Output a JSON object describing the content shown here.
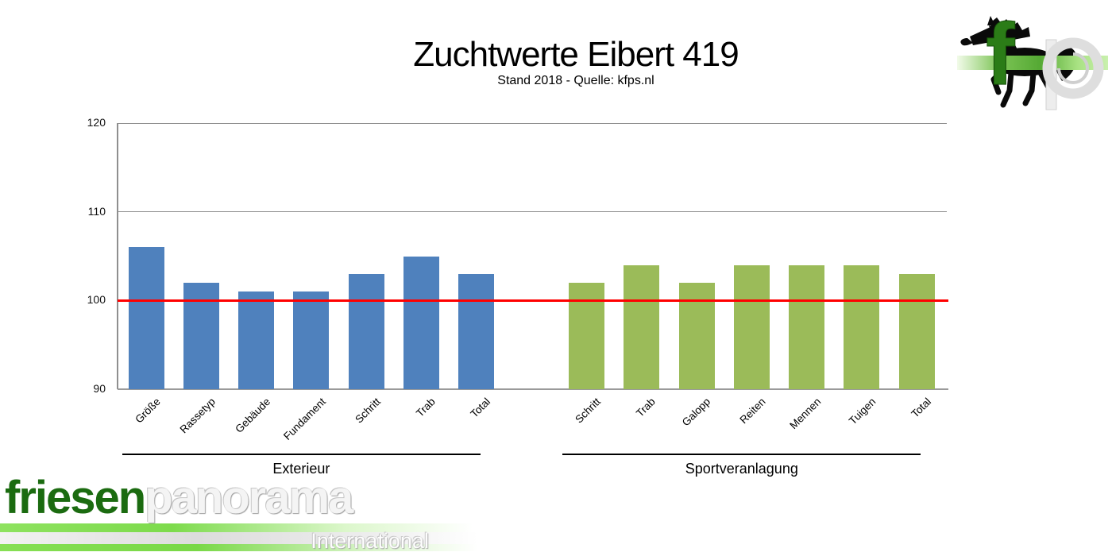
{
  "header": {
    "title": "Zuchtwerte Eibert 419",
    "subtitle": "Stand 2018 - Quelle: kfps.nl"
  },
  "chart_data": {
    "type": "bar",
    "title": "Zuchtwerte Eibert 419",
    "subtitle": "Stand 2018 - Quelle: kfps.nl",
    "ylim": [
      90,
      120
    ],
    "yticks": [
      90,
      100,
      110,
      120
    ],
    "grid": true,
    "legend": "none",
    "reference_line": {
      "value": 100,
      "color": "#ff0000"
    },
    "groups": [
      {
        "label": "Exterieur",
        "color": "#4f81bd",
        "categories": [
          "Größe",
          "Rassetyp",
          "Gebäude",
          "Fundament",
          "Schritt",
          "Trab",
          "Total"
        ],
        "values": [
          106,
          102,
          101,
          101,
          103,
          105,
          103
        ]
      },
      {
        "label": "Sportveranlagung",
        "color": "#9bbb59",
        "categories": [
          "Schritt",
          "Trab",
          "Galopp",
          "Reiten",
          "Mennen",
          "Tuigen",
          "Total"
        ],
        "values": [
          102,
          104,
          102,
          104,
          104,
          104,
          103
        ]
      }
    ]
  },
  "logo": {
    "letter_f": "f",
    "letter_p": "p"
  },
  "watermark": {
    "brand_green": "friesen",
    "brand_grey": "panorama",
    "tagline": "International"
  },
  "colors": {
    "bar_blue": "#4f81bd",
    "bar_green": "#9bbb59",
    "reference_red": "#ff0000",
    "grid_gray": "#8f8f8f",
    "logo_green": "#2b7c17"
  }
}
